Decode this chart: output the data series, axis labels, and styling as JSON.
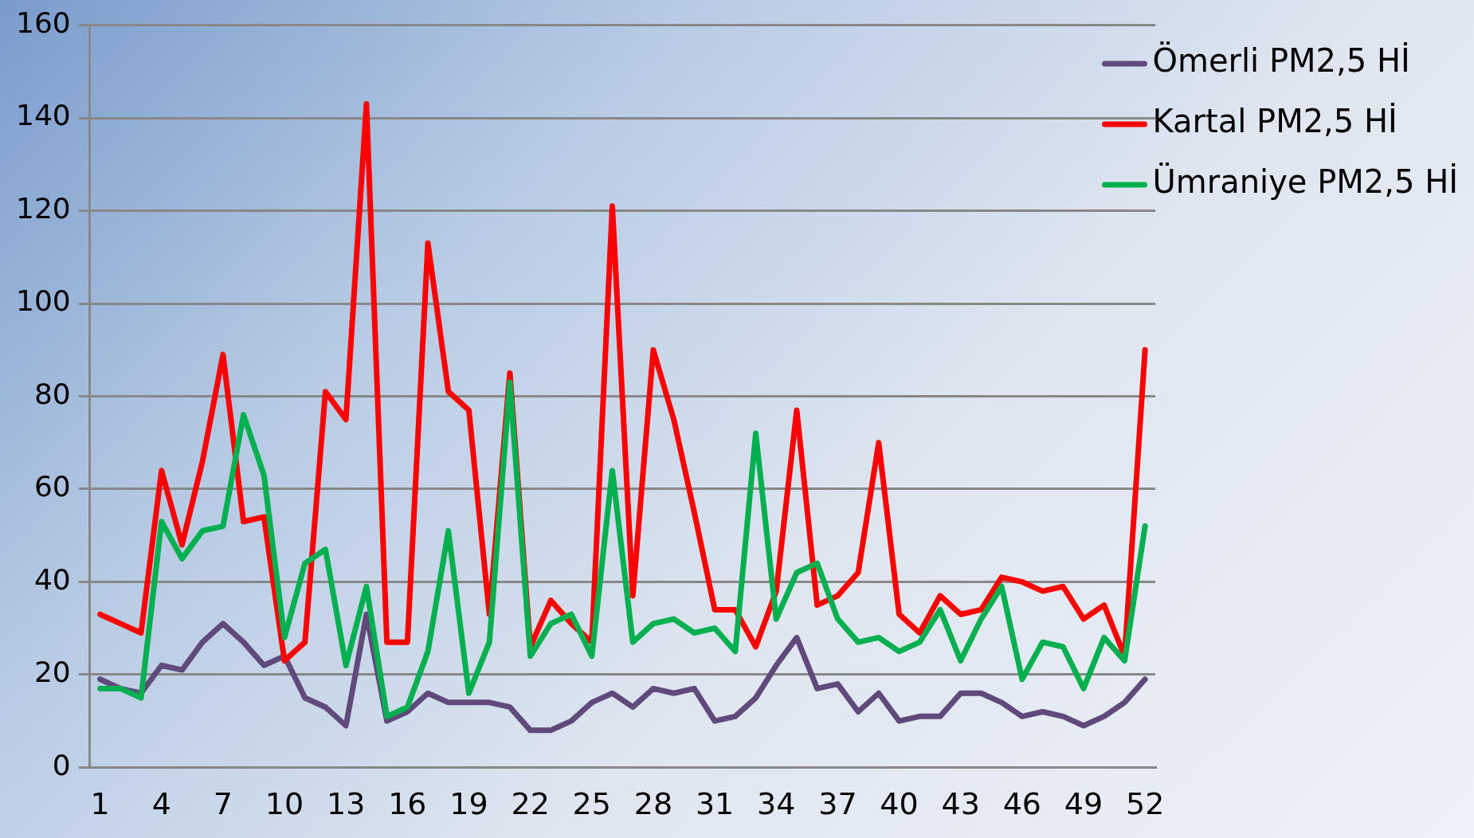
{
  "chart_data": {
    "type": "line",
    "categories": [
      "1",
      null,
      null,
      "4",
      null,
      null,
      "7",
      null,
      null,
      "10",
      null,
      null,
      "13",
      null,
      null,
      "16",
      null,
      null,
      "19",
      null,
      null,
      "22",
      null,
      null,
      "25",
      null,
      null,
      "28",
      null,
      null,
      "31",
      null,
      null,
      "34",
      null,
      null,
      "37",
      null,
      null,
      "40",
      null,
      null,
      "43",
      null,
      null,
      "46",
      null,
      null,
      "49",
      null,
      null,
      "52"
    ],
    "series": [
      {
        "name": "Ömerli PM2,5 Hİ",
        "color": "#604a7b",
        "values": [
          19,
          17,
          16,
          22,
          21,
          27,
          31,
          27,
          22,
          24,
          15,
          13,
          9,
          33,
          10,
          12,
          16,
          14,
          14,
          14,
          13,
          8,
          8,
          10,
          14,
          16,
          13,
          17,
          16,
          17,
          10,
          11,
          15,
          22,
          28,
          17,
          18,
          12,
          16,
          10,
          11,
          11,
          16,
          16,
          14,
          11,
          12,
          11,
          9,
          11,
          14,
          19
        ]
      },
      {
        "name": "Kartal PM2,5 Hİ",
        "color": "#ff0000",
        "values": [
          33,
          31,
          29,
          64,
          48,
          66,
          89,
          53,
          54,
          23,
          27,
          81,
          75,
          143,
          27,
          27,
          113,
          81,
          77,
          33,
          85,
          26,
          36,
          31,
          27,
          121,
          37,
          90,
          75,
          55,
          34,
          34,
          26,
          38,
          77,
          35,
          37,
          42,
          70,
          33,
          29,
          37,
          33,
          34,
          41,
          40,
          38,
          39,
          32,
          35,
          24,
          90
        ]
      },
      {
        "name": "Ümraniye PM2,5 Hİ",
        "color": "#00b050",
        "values": [
          17,
          17,
          15,
          53,
          45,
          51,
          52,
          76,
          63,
          28,
          44,
          47,
          22,
          39,
          11,
          13,
          25,
          51,
          16,
          27,
          83,
          24,
          31,
          33,
          24,
          64,
          27,
          31,
          32,
          29,
          30,
          25,
          72,
          32,
          42,
          44,
          32,
          27,
          28,
          25,
          27,
          34,
          23,
          32,
          39,
          19,
          27,
          26,
          17,
          28,
          23,
          52
        ]
      }
    ],
    "ylim": [
      0,
      160
    ],
    "yticks": [
      0,
      20,
      40,
      60,
      80,
      100,
      120,
      140,
      160
    ],
    "grid": "y",
    "legend": "top right",
    "marker": "none",
    "line_style": "solid"
  }
}
